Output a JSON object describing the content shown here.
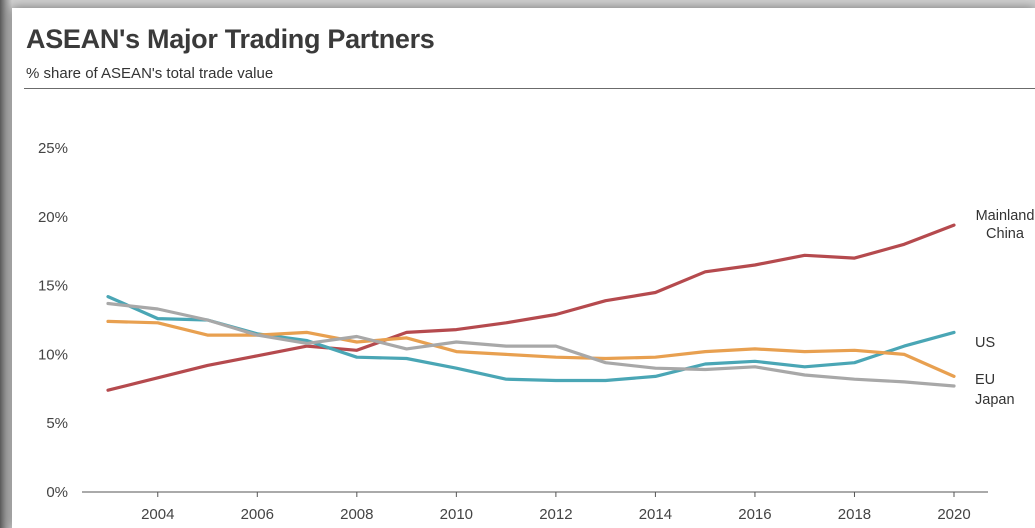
{
  "header": {
    "title": "ASEAN's Major Trading Partners",
    "subtitle": "% share of ASEAN's total trade value"
  },
  "chart_data": {
    "type": "line",
    "title": "ASEAN's Major Trading Partners",
    "subtitle": "% share of ASEAN's total trade value",
    "xlabel": "",
    "ylabel": "",
    "x": [
      2003,
      2004,
      2005,
      2006,
      2007,
      2008,
      2009,
      2010,
      2011,
      2012,
      2013,
      2014,
      2015,
      2016,
      2017,
      2018,
      2019,
      2020
    ],
    "xticks": [
      2004,
      2006,
      2008,
      2010,
      2012,
      2014,
      2016,
      2018,
      2020
    ],
    "yticks": [
      {
        "value": 0,
        "label": "0%"
      },
      {
        "value": 5,
        "label": "5%"
      },
      {
        "value": 10,
        "label": "10%"
      },
      {
        "value": 15,
        "label": "15%"
      },
      {
        "value": 20,
        "label": "20%"
      },
      {
        "value": 25,
        "label": "25%"
      }
    ],
    "ylim": [
      0,
      25
    ],
    "xlim": [
      2003,
      2020
    ],
    "grid": false,
    "series": [
      {
        "name": "Mainland China",
        "label_lines": [
          "Mainland",
          "China"
        ],
        "color": "#b54a4e",
        "values": [
          7.4,
          8.3,
          9.2,
          9.9,
          10.6,
          10.3,
          11.6,
          11.8,
          12.3,
          12.9,
          13.9,
          14.5,
          16.0,
          16.5,
          17.2,
          17.0,
          18.0,
          19.4
        ]
      },
      {
        "name": "US",
        "label_lines": [
          "US"
        ],
        "color": "#4aa6b5",
        "values": [
          14.2,
          12.6,
          12.5,
          11.5,
          11.0,
          9.8,
          9.7,
          9.0,
          8.2,
          8.1,
          8.1,
          8.4,
          9.3,
          9.5,
          9.1,
          9.4,
          10.6,
          11.6
        ]
      },
      {
        "name": "EU",
        "label_lines": [
          "EU"
        ],
        "color": "#e8a050",
        "values": [
          12.4,
          12.3,
          11.4,
          11.4,
          11.6,
          10.9,
          11.2,
          10.2,
          10.0,
          9.8,
          9.7,
          9.8,
          10.2,
          10.4,
          10.2,
          10.3,
          10.0,
          8.4
        ]
      },
      {
        "name": "Japan",
        "label_lines": [
          "Japan"
        ],
        "color": "#a8a8a8",
        "values": [
          13.7,
          13.3,
          12.5,
          11.4,
          10.8,
          11.3,
          10.4,
          10.9,
          10.6,
          10.6,
          9.4,
          9.0,
          8.9,
          9.1,
          8.5,
          8.2,
          8.0,
          7.7
        ]
      }
    ]
  }
}
